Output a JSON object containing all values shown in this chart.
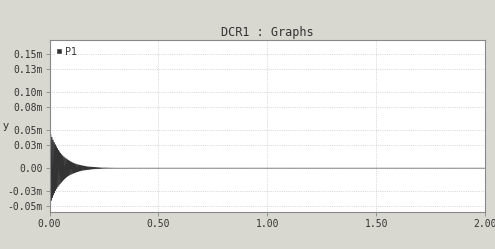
{
  "title": "DCR1 : Graphs",
  "ylabel": "y",
  "xlabel": "",
  "legend_label": "P1",
  "xlim": [
    0.0,
    2.0
  ],
  "ylim": [
    -0.057,
    0.168
  ],
  "yticks": [
    -0.05,
    -0.03,
    0.0,
    0.03,
    0.05,
    0.08,
    0.1,
    0.13,
    0.15
  ],
  "ytick_labels": [
    "-0.05m",
    "-0.03m",
    "0.00",
    "0.03m",
    "0.05m",
    "0.08m",
    "0.10m",
    "0.13m",
    "0.15m"
  ],
  "xticks": [
    0.0,
    0.5,
    1.0,
    1.5,
    2.0
  ],
  "xtick_labels": [
    "0.00",
    "0.50",
    "1.00",
    "1.50",
    "2.00"
  ],
  "outer_bg_color": "#d8d8d0",
  "plot_bg_color": "#ffffff",
  "line_color": "#333333",
  "grid_color": "#bbbbbb",
  "title_color": "#333333",
  "tick_color": "#333333",
  "title_fontsize": 8.5,
  "axis_fontsize": 7.5,
  "tick_fontsize": 7.0,
  "signal_decay": 18.0,
  "signal_freq": 200.0,
  "signal_amplitude": 0.052,
  "signal_duration": 2.0,
  "signal_dt": 0.0005
}
